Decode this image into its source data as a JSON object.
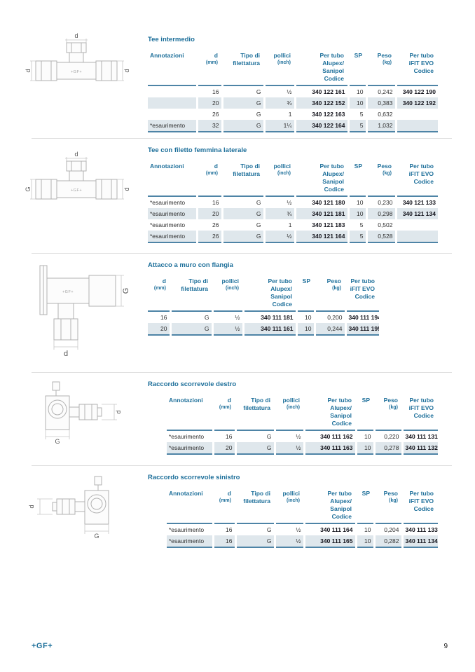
{
  "colors": {
    "accent": "#1d6f9a",
    "rule": "#4e84a6",
    "stripe": "#dfe7ec",
    "divider": "#dedede",
    "text": "#2e2e2e",
    "code": "#14141c"
  },
  "footer": {
    "logo": "+GF+",
    "page_number": "9"
  },
  "sections": [
    {
      "title": "Tee intermedio",
      "layout": "a",
      "drawing": {
        "type": "tee",
        "labels": {
          "top": "d",
          "left": "d",
          "right": "d",
          "body": "+GF+"
        }
      },
      "columns": [
        {
          "key": "annotazioni",
          "label": "Annotazioni",
          "sub": ""
        },
        {
          "key": "d",
          "label": "d",
          "sub": "(mm)"
        },
        {
          "key": "tipo",
          "label": "Tipo di\nfilettatura",
          "sub": ""
        },
        {
          "key": "pollici",
          "label": "pollici",
          "sub": "(inch)"
        },
        {
          "key": "codice1",
          "label": "Per tubo\nAlupex/\nSanipol\nCodice",
          "sub": ""
        },
        {
          "key": "sp",
          "label": "SP",
          "sub": ""
        },
        {
          "key": "peso",
          "label": "Peso",
          "sub": "(kg)"
        },
        {
          "key": "codice2",
          "label": "Per tubo\niFIT EVO\nCodice",
          "sub": ""
        }
      ],
      "rows": [
        [
          "",
          "16",
          "G",
          "½",
          "340 122 161",
          "10",
          "0,242",
          "340 122 190"
        ],
        [
          "",
          "20",
          "G",
          "¾",
          "340 122 152",
          "10",
          "0,383",
          "340 122 192"
        ],
        [
          "",
          "26",
          "G",
          "1",
          "340 122 163",
          "5",
          "0,632",
          ""
        ],
        [
          "*esaurimento",
          "32",
          "G",
          "1¼",
          "340 122 164",
          "5",
          "1,032",
          ""
        ]
      ]
    },
    {
      "title": "Tee con filetto femmina laterale",
      "layout": "a",
      "drawing": {
        "type": "tee",
        "labels": {
          "top": "d",
          "left": "G",
          "right": "d",
          "body": "+GF+"
        }
      },
      "columns": [
        {
          "key": "annotazioni",
          "label": "Annotazioni",
          "sub": ""
        },
        {
          "key": "d",
          "label": "d",
          "sub": "(mm)"
        },
        {
          "key": "tipo",
          "label": "Tipo di\nfilettatura",
          "sub": ""
        },
        {
          "key": "pollici",
          "label": "pollici",
          "sub": "(inch)"
        },
        {
          "key": "codice1",
          "label": "Per tubo\nAlupex/\nSanipol\nCodice",
          "sub": ""
        },
        {
          "key": "sp",
          "label": "SP",
          "sub": ""
        },
        {
          "key": "peso",
          "label": "Peso",
          "sub": "(kg)"
        },
        {
          "key": "codice2",
          "label": "Per tubo\niFIT EVO\nCodice",
          "sub": ""
        }
      ],
      "rows": [
        [
          "*esaurimento",
          "16",
          "G",
          "½",
          "340 121 180",
          "10",
          "0,230",
          "340 121 133"
        ],
        [
          "*esaurimento",
          "20",
          "G",
          "¾",
          "340 121 181",
          "10",
          "0,298",
          "340 121 134"
        ],
        [
          "*esaurimento",
          "26",
          "G",
          "1",
          "340 121 183",
          "5",
          "0,502",
          ""
        ],
        [
          "*esaurimento",
          "26",
          "G",
          "½",
          "340 121 164",
          "5",
          "0,528",
          ""
        ]
      ]
    },
    {
      "title": "Attacco a muro con flangia",
      "layout": "b",
      "drawing": {
        "type": "wall-flange",
        "labels": {
          "right": "G",
          "bottom": "d",
          "body": "+GF+"
        }
      },
      "columns": [
        {
          "key": "d",
          "label": "d",
          "sub": "(mm)"
        },
        {
          "key": "tipo",
          "label": "Tipo di\nfilettatura",
          "sub": ""
        },
        {
          "key": "pollici",
          "label": "pollici",
          "sub": "(inch)"
        },
        {
          "key": "codice1",
          "label": "Per tubo\nAlupex/\nSanipol\nCodice",
          "sub": ""
        },
        {
          "key": "sp",
          "label": "SP",
          "sub": ""
        },
        {
          "key": "peso",
          "label": "Peso",
          "sub": "(kg)"
        },
        {
          "key": "codice2",
          "label": "Per tubo\niFIT EVO\nCodice",
          "sub": ""
        }
      ],
      "rows": [
        [
          "16",
          "G",
          "½",
          "340 111 181",
          "10",
          "0,200",
          "340 111 194"
        ],
        [
          "20",
          "G",
          "½",
          "340 111 161",
          "10",
          "0,244",
          "340 111 195"
        ]
      ]
    },
    {
      "title": "Raccordo scorrevole destro",
      "layout": "c",
      "drawing": {
        "type": "slide-right",
        "labels": {
          "right": "d",
          "bottom": "G"
        }
      },
      "columns": [
        {
          "key": "annotazioni",
          "label": "Annotazioni",
          "sub": ""
        },
        {
          "key": "d",
          "label": "d",
          "sub": "(mm)"
        },
        {
          "key": "tipo",
          "label": "Tipo di\nfilettatura",
          "sub": ""
        },
        {
          "key": "pollici",
          "label": "pollici",
          "sub": "(inch)"
        },
        {
          "key": "codice1",
          "label": "Per tubo\nAlupex/\nSanipol\nCodice",
          "sub": ""
        },
        {
          "key": "sp",
          "label": "SP",
          "sub": ""
        },
        {
          "key": "peso",
          "label": "Peso",
          "sub": "(kg)"
        },
        {
          "key": "codice2",
          "label": "Per tubo\niFIT EVO\nCodice",
          "sub": ""
        }
      ],
      "rows": [
        [
          "*esaurimento",
          "16",
          "G",
          "½",
          "340 111 162",
          "10",
          "0,220",
          "340 111 131"
        ],
        [
          "*esaurimento",
          "20",
          "G",
          "½",
          "340 111 163",
          "10",
          "0,278",
          "340 111 132"
        ]
      ]
    },
    {
      "title": "Raccordo scorrevole sinistro",
      "layout": "c",
      "drawing": {
        "type": "slide-left",
        "labels": {
          "left": "d",
          "bottom": "G"
        }
      },
      "columns": [
        {
          "key": "annotazioni",
          "label": "Annotazioni",
          "sub": ""
        },
        {
          "key": "d",
          "label": "d",
          "sub": "(mm)"
        },
        {
          "key": "tipo",
          "label": "Tipo di\nfilettatura",
          "sub": ""
        },
        {
          "key": "pollici",
          "label": "pollici",
          "sub": "(inch)"
        },
        {
          "key": "codice1",
          "label": "Per tubo\nAlupex/\nSanipol\nCodice",
          "sub": ""
        },
        {
          "key": "sp",
          "label": "SP",
          "sub": ""
        },
        {
          "key": "peso",
          "label": "Peso",
          "sub": "(kg)"
        },
        {
          "key": "codice2",
          "label": "Per tubo\niFIT EVO\nCodice",
          "sub": ""
        }
      ],
      "rows": [
        [
          "*esaurimento",
          "16",
          "G",
          "½",
          "340 111 164",
          "10",
          "0,204",
          "340 111 133"
        ],
        [
          "*esaurimento",
          "16",
          "G",
          "½",
          "340 111 165",
          "10",
          "0,282",
          "340 111 134"
        ]
      ]
    }
  ]
}
